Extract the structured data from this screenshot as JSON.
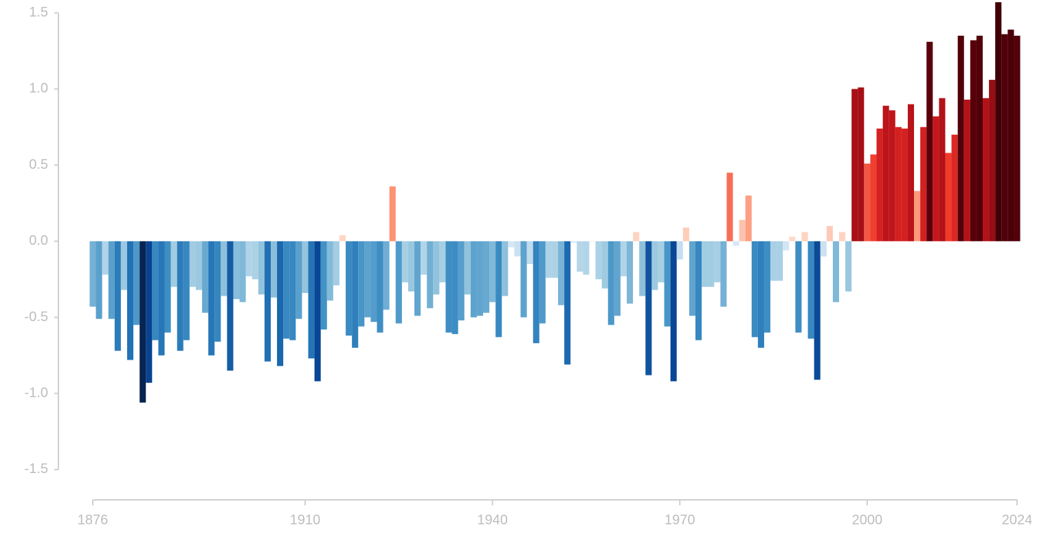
{
  "chart_data": {
    "type": "bar",
    "x": [
      1876,
      1877,
      1878,
      1879,
      1880,
      1881,
      1882,
      1883,
      1884,
      1885,
      1886,
      1887,
      1888,
      1889,
      1890,
      1891,
      1892,
      1893,
      1894,
      1895,
      1896,
      1897,
      1898,
      1899,
      1900,
      1901,
      1902,
      1903,
      1904,
      1905,
      1906,
      1907,
      1908,
      1909,
      1910,
      1911,
      1912,
      1913,
      1914,
      1915,
      1916,
      1917,
      1918,
      1919,
      1920,
      1921,
      1922,
      1923,
      1924,
      1925,
      1926,
      1927,
      1928,
      1929,
      1930,
      1931,
      1932,
      1933,
      1934,
      1935,
      1936,
      1937,
      1938,
      1939,
      1940,
      1941,
      1942,
      1943,
      1944,
      1945,
      1946,
      1947,
      1948,
      1949,
      1950,
      1951,
      1952,
      1953,
      1954,
      1955,
      1956,
      1957,
      1958,
      1959,
      1960,
      1961,
      1962,
      1963,
      1964,
      1965,
      1966,
      1967,
      1968,
      1969,
      1970,
      1971,
      1972,
      1973,
      1974,
      1975,
      1976,
      1977,
      1978,
      1979,
      1980,
      1981,
      1982,
      1983,
      1984,
      1985,
      1986,
      1987,
      1988,
      1989,
      1990,
      1991,
      1992,
      1993,
      1994,
      1995,
      1996,
      1997,
      1998,
      1999,
      2000,
      2001,
      2002,
      2003,
      2004,
      2005,
      2006,
      2007,
      2008,
      2009,
      2010,
      2011,
      2012,
      2013,
      2014,
      2015,
      2016,
      2017,
      2018,
      2019,
      2020,
      2021,
      2022,
      2023,
      2024
    ],
    "values": [
      -0.43,
      -0.51,
      -0.22,
      -0.51,
      -0.72,
      -0.32,
      -0.78,
      -0.55,
      -1.06,
      -0.93,
      -0.65,
      -0.75,
      -0.6,
      -0.3,
      -0.72,
      -0.65,
      -0.3,
      -0.32,
      -0.47,
      -0.75,
      -0.66,
      -0.36,
      -0.85,
      -0.38,
      -0.4,
      -0.23,
      -0.25,
      -0.35,
      -0.79,
      -0.37,
      -0.82,
      -0.64,
      -0.65,
      -0.51,
      -0.34,
      -0.77,
      -0.92,
      -0.58,
      -0.39,
      -0.29,
      0.04,
      -0.62,
      -0.7,
      -0.56,
      -0.5,
      -0.53,
      -0.6,
      -0.45,
      0.36,
      -0.54,
      -0.27,
      -0.33,
      -0.49,
      -0.22,
      -0.44,
      -0.35,
      -0.27,
      -0.6,
      -0.61,
      -0.52,
      -0.35,
      -0.5,
      -0.49,
      -0.47,
      -0.4,
      -0.63,
      -0.36,
      -0.04,
      -0.1,
      -0.5,
      -0.15,
      -0.67,
      -0.54,
      -0.24,
      -0.24,
      -0.42,
      -0.81,
      -0.01,
      -0.2,
      -0.22,
      0.0,
      -0.25,
      -0.31,
      -0.55,
      -0.49,
      -0.23,
      -0.41,
      0.06,
      -0.36,
      -0.88,
      -0.32,
      -0.27,
      -0.56,
      -0.92,
      -0.12,
      0.09,
      -0.49,
      -0.65,
      -0.3,
      -0.3,
      -0.27,
      -0.43,
      0.45,
      -0.03,
      0.14,
      0.3,
      -0.63,
      -0.7,
      -0.6,
      -0.26,
      -0.26,
      -0.06,
      0.03,
      -0.6,
      0.06,
      -0.64,
      -0.91,
      -0.1,
      0.1,
      -0.4,
      0.06,
      -0.33,
      1.0,
      1.01,
      0.51,
      0.57,
      0.74,
      0.89,
      0.86,
      0.75,
      0.74,
      0.9,
      0.33,
      0.75,
      1.31,
      0.82,
      0.94,
      0.58,
      0.7,
      1.35,
      0.93,
      1.32,
      1.35,
      0.94,
      1.06,
      1.57,
      1.36,
      1.39,
      1.35
    ],
    "xlim": [
      1876,
      2024
    ],
    "xticks": [
      1876,
      1910,
      1940,
      1970,
      2000,
      2024
    ],
    "ylim": [
      -1.55,
      1.58
    ],
    "yticks": [
      1.5,
      {
        "value": 1.0,
        "label": "1.0"
      },
      0.5,
      {
        "value": 0.0,
        "label": "0.0"
      },
      -0.5,
      {
        "value": -1.0,
        "label": "-1.0"
      },
      -1.5
    ],
    "colormap": "RdBu"
  }
}
